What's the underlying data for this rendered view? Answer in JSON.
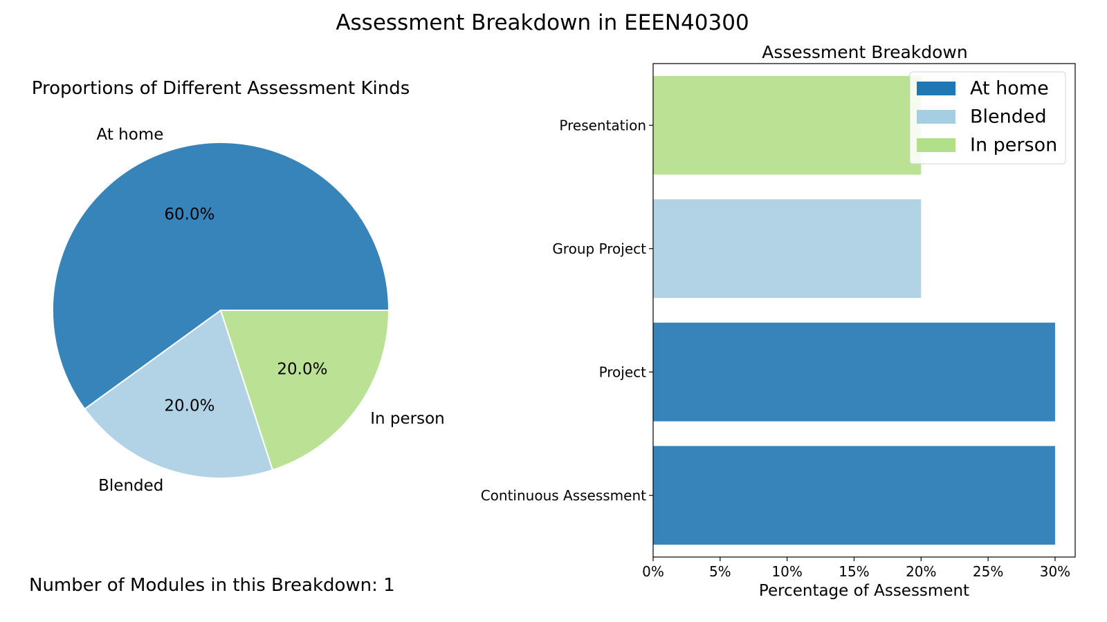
{
  "figure": {
    "suptitle": "Assessment Breakdown in EEEN40300",
    "modules_text": "Number of Modules in this Breakdown: 1"
  },
  "colors": {
    "at_home": "#3784BA",
    "blended": "#B1D3E5",
    "in_person": "#BBE294",
    "legend_at_home": "#1F78B4",
    "legend_blended": "#A6CEE3",
    "legend_in_person": "#B2DF8A"
  },
  "chart_data": [
    {
      "type": "pie",
      "title": "Proportions of Different Assessment Kinds",
      "labels": [
        "At home",
        "Blended",
        "In person"
      ],
      "values": [
        60.0,
        20.0,
        20.0
      ],
      "pct_labels": [
        "60.0%",
        "20.0%",
        "20.0%"
      ],
      "start_angle_deg": 0,
      "direction": "counterclockwise"
    },
    {
      "type": "bar",
      "orientation": "horizontal",
      "title": "Assessment Breakdown",
      "xlabel": "Percentage of Assessment",
      "ylabel": "",
      "categories": [
        "Continuous Assessment",
        "Project",
        "Group Project",
        "Presentation"
      ],
      "values": [
        30,
        30,
        20,
        20
      ],
      "kinds": [
        "At home",
        "At home",
        "Blended",
        "In person"
      ],
      "xlim": [
        0,
        31.5
      ],
      "xticks": [
        0,
        5,
        10,
        15,
        20,
        25,
        30
      ],
      "xtick_labels": [
        "0%",
        "5%",
        "10%",
        "15%",
        "20%",
        "25%",
        "30%"
      ],
      "legend": {
        "placement": "top-right",
        "entries": [
          "At home",
          "Blended",
          "In person"
        ]
      },
      "grid": false
    }
  ]
}
